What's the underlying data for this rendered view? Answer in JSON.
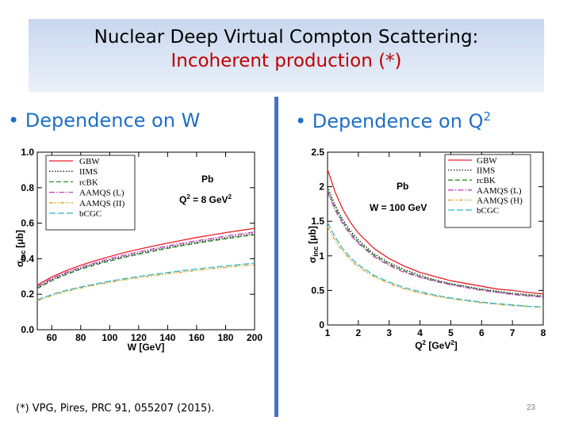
{
  "slide": {
    "title_line1": "Nuclear Deep Virtual Compton Scattering:",
    "title_line2": "Incoherent production (*)",
    "bullet_left": "• Dependence on W",
    "bullet_right": "• Dependence on Q",
    "bullet_right_sup": "2",
    "footnote": "(*) VPG, Pires, PRC 91,  055207 (2015).",
    "page_number": "23",
    "colors": {
      "title": "#000000",
      "subtitle": "#c00000",
      "bullets": "#1f6fc6",
      "divider": "#4472c4"
    }
  },
  "chart_data": [
    {
      "type": "line",
      "x_tick_labels": [
        "60",
        "80",
        "100",
        "120",
        "140",
        "160",
        "180",
        "200"
      ],
      "y_tick_labels": [
        "0.0",
        "0.2",
        "0.4",
        "0.6",
        "0.8",
        "1.0"
      ],
      "xlim": [
        50,
        200
      ],
      "ylim": [
        0,
        1.0
      ],
      "xlabel": "W [GeV]",
      "ylabel_main": "σ",
      "ylabel_sub": "inc",
      "ylabel_unit": "[μb]",
      "annotation_nucleus": "Pb",
      "annotation_q2": "Q",
      "annotation_q2_sup": "2",
      "annotation_q2_value": " = 8 GeV",
      "annotation_q2_value_sup": "2",
      "legend": [
        "GBW",
        "IIMS",
        "rcBK",
        "AAMQS (L)",
        "AAMQS (II)",
        "bCGC"
      ],
      "x": [
        50,
        60,
        70,
        80,
        90,
        100,
        110,
        120,
        130,
        140,
        150,
        160,
        170,
        180,
        190,
        200
      ],
      "series": [
        {
          "name": "GBW",
          "color": "#e8202a",
          "dash": "",
          "values": [
            0.252,
            0.297,
            0.333,
            0.363,
            0.389,
            0.412,
            0.434,
            0.453,
            0.471,
            0.488,
            0.504,
            0.519,
            0.533,
            0.547,
            0.559,
            0.571
          ]
        },
        {
          "name": "IIMS",
          "color": "#1a1a1a",
          "dash": "1.5,2",
          "values": [
            0.238,
            0.282,
            0.317,
            0.346,
            0.371,
            0.393,
            0.413,
            0.431,
            0.448,
            0.464,
            0.479,
            0.493,
            0.506,
            0.518,
            0.53,
            0.541
          ]
        },
        {
          "name": "rcBK",
          "color": "#2e8b2e",
          "dash": "6,3",
          "values": [
            0.232,
            0.276,
            0.311,
            0.34,
            0.365,
            0.387,
            0.407,
            0.425,
            0.442,
            0.458,
            0.473,
            0.487,
            0.5,
            0.512,
            0.524,
            0.535
          ]
        },
        {
          "name": "AAMQS (L)",
          "color": "#c040c0",
          "dash": "7,2,1.5,2",
          "values": [
            0.243,
            0.288,
            0.323,
            0.352,
            0.377,
            0.4,
            0.42,
            0.439,
            0.456,
            0.472,
            0.487,
            0.501,
            0.514,
            0.527,
            0.539,
            0.55
          ]
        },
        {
          "name": "AAMQS (II)",
          "color": "#e0a020",
          "dash": "5,2,1.5,2,1.5,2",
          "values": [
            0.163,
            0.192,
            0.216,
            0.235,
            0.252,
            0.267,
            0.281,
            0.293,
            0.304,
            0.315,
            0.325,
            0.334,
            0.343,
            0.351,
            0.359,
            0.366
          ]
        },
        {
          "name": "bCGC",
          "color": "#30b8c8",
          "dash": "8,3",
          "values": [
            0.168,
            0.198,
            0.222,
            0.241,
            0.258,
            0.273,
            0.287,
            0.3,
            0.311,
            0.322,
            0.332,
            0.342,
            0.351,
            0.359,
            0.367,
            0.375
          ]
        }
      ]
    },
    {
      "type": "line",
      "x_tick_labels": [
        "1",
        "2",
        "3",
        "4",
        "5",
        "6",
        "7",
        "8"
      ],
      "y_tick_labels": [
        "0",
        "0.5",
        "1",
        "1.5",
        "2",
        "2.5"
      ],
      "xlim": [
        1,
        8
      ],
      "ylim": [
        0,
        2.5
      ],
      "xlabel": "Q",
      "xlabel_sup": "2",
      "xlabel_unit": " [GeV",
      "xlabel_unit_sup": "2",
      "xlabel_close": "]",
      "ylabel_main": "σ",
      "ylabel_sub": "inc",
      "ylabel_unit": "[μb]",
      "annotation_nucleus": "Pb",
      "annotation_w": "W = 100 GeV",
      "legend": [
        "GBW",
        "IIMS",
        "rcBK",
        "AAMQS (L)",
        "AAMQS (H)",
        "bCGC"
      ],
      "x": [
        1,
        1.25,
        1.5,
        1.75,
        2,
        2.5,
        3,
        3.5,
        4,
        4.5,
        5,
        5.5,
        6,
        6.5,
        7,
        7.5,
        8
      ],
      "series": [
        {
          "name": "GBW",
          "color": "#e8202a",
          "dash": "",
          "values": [
            2.25,
            1.92,
            1.67,
            1.48,
            1.33,
            1.11,
            0.96,
            0.85,
            0.76,
            0.7,
            0.64,
            0.6,
            0.56,
            0.52,
            0.5,
            0.47,
            0.45
          ]
        },
        {
          "name": "IIMS",
          "color": "#1a1a1a",
          "dash": "1.5,2",
          "values": [
            2.0,
            1.73,
            1.52,
            1.36,
            1.23,
            1.03,
            0.9,
            0.8,
            0.72,
            0.65,
            0.6,
            0.56,
            0.52,
            0.49,
            0.46,
            0.44,
            0.42
          ]
        },
        {
          "name": "rcBK",
          "color": "#2e8b2e",
          "dash": "6,3",
          "values": [
            1.95,
            1.69,
            1.49,
            1.33,
            1.2,
            1.01,
            0.88,
            0.78,
            0.7,
            0.64,
            0.59,
            0.55,
            0.51,
            0.48,
            0.45,
            0.43,
            0.41
          ]
        },
        {
          "name": "AAMQS (L)",
          "color": "#c040c0",
          "dash": "7,2,1.5,2",
          "values": [
            1.92,
            1.66,
            1.46,
            1.3,
            1.18,
            0.99,
            0.86,
            0.76,
            0.69,
            0.63,
            0.58,
            0.54,
            0.5,
            0.47,
            0.44,
            0.42,
            0.4
          ]
        },
        {
          "name": "AAMQS (H)",
          "color": "#e0a020",
          "dash": "5,2,1.5,2,1.5,2",
          "values": [
            1.42,
            1.22,
            1.06,
            0.94,
            0.84,
            0.7,
            0.6,
            0.52,
            0.46,
            0.42,
            0.38,
            0.35,
            0.32,
            0.3,
            0.28,
            0.27,
            0.25
          ]
        },
        {
          "name": "bCGC",
          "color": "#30b8c8",
          "dash": "8,3",
          "values": [
            1.48,
            1.27,
            1.1,
            0.97,
            0.87,
            0.72,
            0.62,
            0.54,
            0.48,
            0.43,
            0.39,
            0.36,
            0.33,
            0.31,
            0.29,
            0.27,
            0.26
          ]
        }
      ]
    }
  ]
}
